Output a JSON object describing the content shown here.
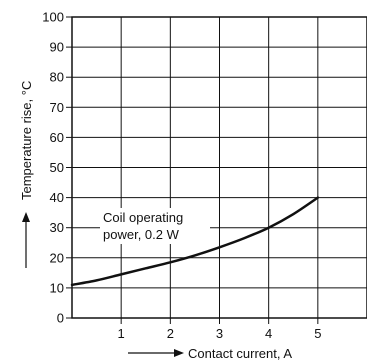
{
  "chart_data": {
    "type": "line",
    "xlabel": "Contact current, A",
    "ylabel": "Temperature rise, °C",
    "xlim": [
      0,
      6
    ],
    "ylim": [
      0,
      100
    ],
    "x_ticks": [
      1,
      2,
      3,
      4,
      5
    ],
    "y_ticks": [
      0,
      10,
      20,
      30,
      40,
      50,
      60,
      70,
      80,
      90,
      100
    ],
    "x_tick_labels": [
      "1",
      "2",
      "3",
      "4",
      "5"
    ],
    "y_tick_labels": [
      "0",
      "10",
      "20",
      "30",
      "40",
      "50",
      "60",
      "70",
      "80",
      "90",
      "100"
    ],
    "grid": true,
    "annotations": [
      {
        "text_lines": [
          "Coil operating",
          "power, 0.2 W"
        ]
      }
    ],
    "series": [
      {
        "x": [
          0,
          0.5,
          1,
          1.5,
          2,
          2.5,
          3,
          3.5,
          4,
          4.5,
          5
        ],
        "y": [
          11,
          12.5,
          14.5,
          16.5,
          18.5,
          20.8,
          23.5,
          26.5,
          30,
          34.5,
          40
        ]
      }
    ]
  }
}
